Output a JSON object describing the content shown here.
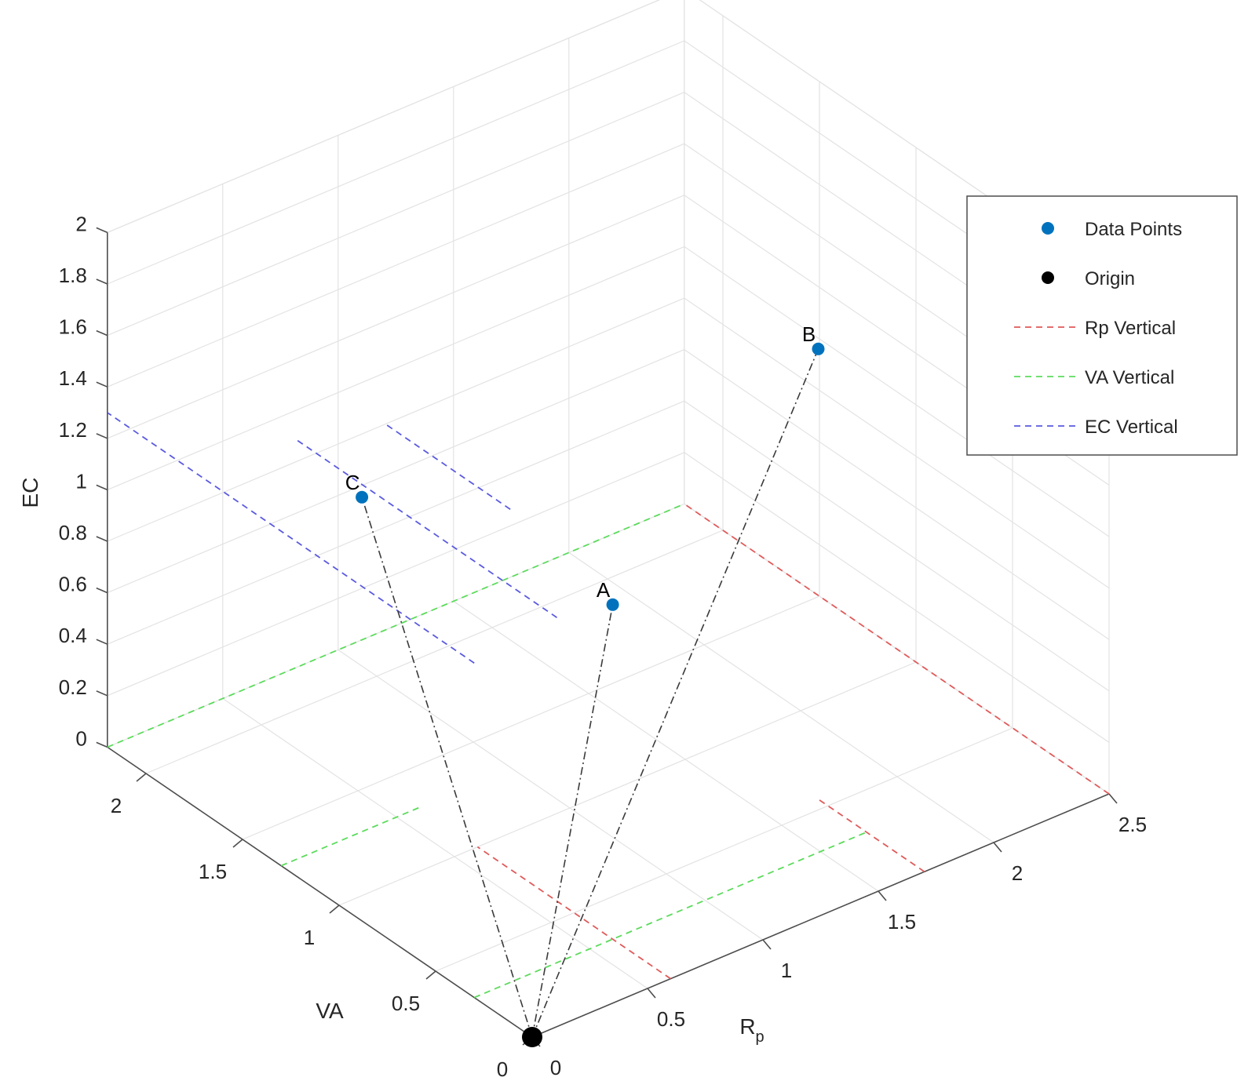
{
  "chart_data": {
    "type": "scatter",
    "title": "",
    "axes": {
      "x": {
        "label": "R",
        "label_subscript": "p",
        "range": [
          0,
          2.5
        ],
        "ticks": [
          0,
          0.5,
          1,
          1.5,
          2,
          2.5
        ],
        "tick_labels": [
          "0",
          "0.5",
          "1",
          "1.5",
          "2",
          "2.5"
        ]
      },
      "y": {
        "label": "VA",
        "range": [
          0,
          2.2
        ],
        "ticks": [
          0,
          0.5,
          1,
          1.5,
          2
        ],
        "tick_labels": [
          "0",
          "0.5",
          "1",
          "1.5",
          "2"
        ]
      },
      "z": {
        "label": "EC",
        "range": [
          0,
          2
        ],
        "ticks": [
          0,
          0.2,
          0.4,
          0.6,
          0.8,
          1,
          1.2,
          1.4,
          1.6,
          1.8,
          2
        ],
        "tick_labels": [
          "0",
          "0.2",
          "0.4",
          "0.6",
          "0.8",
          "1",
          "1.2",
          "1.4",
          "1.6",
          "1.8",
          "2"
        ]
      }
    },
    "grid": true,
    "legend_position": "top-right",
    "series": [
      {
        "name": "Data Points",
        "kind": "marker",
        "color": "#0072BD",
        "points": [
          {
            "label": "A",
            "x": 0.6,
            "y": 0.3,
            "z": 1.3
          },
          {
            "label": "B",
            "x": 1.7,
            "y": 0.55,
            "z": 1.75
          },
          {
            "label": "C",
            "x": 0.35,
            "y": 1.3,
            "z": 1.3
          }
        ]
      },
      {
        "name": "Origin",
        "kind": "marker",
        "color": "#000000",
        "points": [
          {
            "x": 0,
            "y": 0,
            "z": 0
          }
        ]
      },
      {
        "name": "Rp Vertical",
        "kind": "dashed-line",
        "color": "#E05A5A",
        "lines": [
          [
            [
              0.6,
              0,
              0
            ],
            [
              0.6,
              1.0,
              0
            ]
          ],
          [
            [
              1.7,
              0,
              0
            ],
            [
              1.7,
              0.55,
              0
            ]
          ],
          [
            [
              2.5,
              0,
              0
            ],
            [
              2.5,
              2.2,
              0
            ]
          ]
        ]
      },
      {
        "name": "VA Vertical",
        "kind": "dashed-line",
        "color": "#5CDB5C",
        "lines": [
          [
            [
              0,
              0.3,
              0
            ],
            [
              1.7,
              0.3,
              0
            ]
          ],
          [
            [
              0,
              1.3,
              0
            ],
            [
              0.6,
              1.3,
              0
            ]
          ],
          [
            [
              0,
              2.2,
              0
            ],
            [
              2.5,
              2.2,
              0
            ]
          ]
        ]
      },
      {
        "name": "EC Vertical",
        "kind": "dashed-line",
        "color": "#5A5AE0",
        "lines": [
          [
            [
              0,
              0.3,
              1.3
            ],
            [
              0,
              2.2,
              1.3
            ]
          ],
          [
            [
              0.4,
              0.35,
              1.3
            ],
            [
              0.4,
              1.7,
              1.3
            ]
          ],
          [
            [
              0.7,
              0.95,
              1.3
            ],
            [
              0.7,
              1.6,
              1.3
            ]
          ]
        ]
      }
    ],
    "connectors": {
      "color": "#3a3a3a",
      "style": "dash-dot",
      "from": [
        0,
        0,
        0
      ],
      "to_points": [
        "A",
        "B",
        "C"
      ]
    },
    "legend": [
      "Data Points",
      "Origin",
      "Rp Vertical",
      "VA Vertical",
      "EC Vertical"
    ]
  }
}
